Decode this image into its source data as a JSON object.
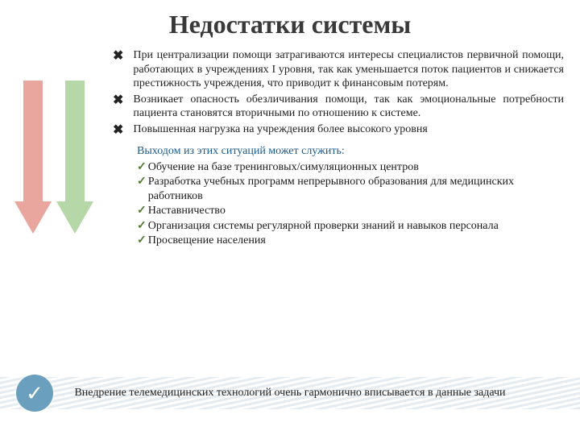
{
  "title": "Недостатки системы",
  "arrows": {
    "red": {
      "shaft_color": "#e9a69e",
      "head_color": "#e9a69e"
    },
    "green": {
      "shaft_color": "#b6d7a8",
      "head_color": "#b6d7a8"
    }
  },
  "bullets": [
    "При централизации помощи затрагиваются интересы специалистов первичной помощи, работающих в учреждениях I уровня, так как уменьшается поток пациентов и снижается престижность учреждения, что приводит к финансовым потерям.",
    "Возникает опасность обезличивания помощи, так как эмоциональные потребности пациента становятся вторичными по отношению к системе.",
    "Повышенная нагрузка на учреждения более высокого уровня"
  ],
  "bullet_glyph": "✖",
  "solutions": {
    "intro": "Выходом из этих ситуаций может служить:",
    "items": [
      "Обучение на базе тренинговых/симуляционных центров",
      "Разработка учебных программ непрерывного образования для медицинских работников",
      "Наставничество",
      "Организация системы регулярной проверки знаний и навыков персонала",
      "Просвещение населения"
    ],
    "check_glyph": "✓"
  },
  "footer": {
    "circle_glyph": "✓",
    "text": "Внедрение телемедицинских технологий очень гармонично вписывается в данные задачи"
  },
  "colors": {
    "title_color": "#393939",
    "solution_intro_color": "#1a5a8a",
    "check_color": "#527a2f",
    "footer_circle_bg": "#6aa0be",
    "background": "#ffffff"
  },
  "typography": {
    "title_fontsize": 32,
    "body_fontsize": 14,
    "bullet_fontsize": 14
  }
}
